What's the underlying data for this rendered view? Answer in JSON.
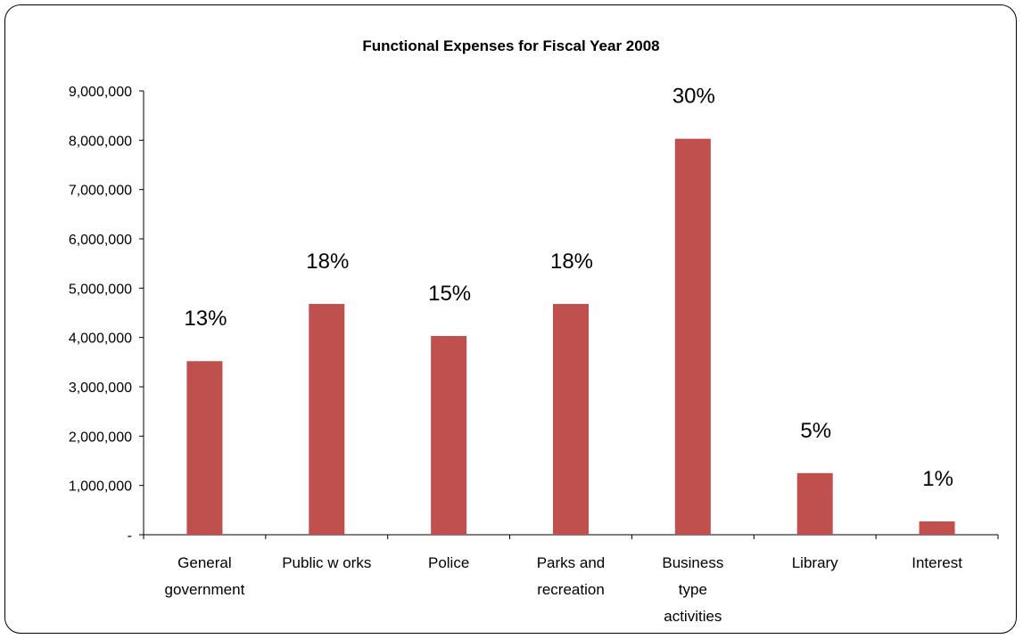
{
  "chart_data": {
    "type": "bar",
    "title": "Functional Expenses for Fiscal Year 2008",
    "xlabel": "",
    "ylabel": "",
    "ylim": [
      0,
      9000000
    ],
    "yticks": [
      {
        "value": 0,
        "label": "-"
      },
      {
        "value": 1000000,
        "label": "1,000,000"
      },
      {
        "value": 2000000,
        "label": "2,000,000"
      },
      {
        "value": 3000000,
        "label": "3,000,000"
      },
      {
        "value": 4000000,
        "label": "4,000,000"
      },
      {
        "value": 5000000,
        "label": "5,000,000"
      },
      {
        "value": 6000000,
        "label": "6,000,000"
      },
      {
        "value": 7000000,
        "label": "7,000,000"
      },
      {
        "value": 8000000,
        "label": "8,000,000"
      },
      {
        "value": 9000000,
        "label": "9,000,000"
      }
    ],
    "grid": false,
    "legend": "none",
    "bar_color": "#C0504D",
    "categories": [
      [
        "General",
        "government"
      ],
      [
        "Public w orks"
      ],
      [
        "Police"
      ],
      [
        "Parks and",
        "recreation"
      ],
      [
        "Business",
        "type",
        "activities"
      ],
      [
        "Library"
      ],
      [
        "Interest"
      ]
    ],
    "values": [
      3520000,
      4680000,
      4030000,
      4680000,
      8030000,
      1250000,
      270000
    ],
    "data_labels": [
      "13%",
      "18%",
      "15%",
      "18%",
      "30%",
      "5%",
      "1%"
    ]
  }
}
